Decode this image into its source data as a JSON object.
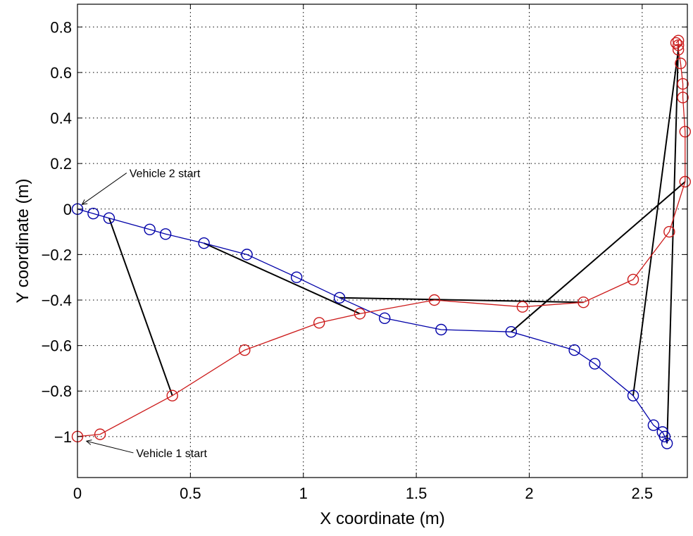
{
  "chart_data": {
    "type": "line",
    "xlabel": "X coordinate (m)",
    "ylabel": "Y coordinate (m)",
    "xlim": [
      0,
      2.7
    ],
    "ylim": [
      -1.18,
      0.9
    ],
    "grid": true,
    "grid_style": "dotted",
    "xticks": [
      0,
      0.5,
      1,
      1.5,
      2,
      2.5
    ],
    "xtick_labels": [
      "0",
      "0.5",
      "1",
      "1.5",
      "2",
      "2.5"
    ],
    "yticks": [
      -1,
      -0.8,
      -0.6,
      -0.4,
      -0.2,
      0,
      0.2,
      0.4,
      0.6,
      0.8
    ],
    "ytick_labels": [
      "−1",
      "−0.8",
      "−0.6",
      "−0.4",
      "−0.2",
      "0",
      "0.2",
      "0.4",
      "0.6",
      "0.8"
    ],
    "series": [
      {
        "color": "#0000a8",
        "marker": "circle",
        "x": [
          0,
          0.07,
          0.14,
          0.32,
          0.39,
          0.56,
          0.75,
          0.97,
          1.16,
          1.36,
          1.61,
          1.92,
          2.2,
          2.29,
          2.46,
          2.55,
          2.59,
          2.6,
          2.61
        ],
        "y": [
          0,
          -0.02,
          -0.04,
          -0.09,
          -0.11,
          -0.15,
          -0.2,
          -0.3,
          -0.39,
          -0.48,
          -0.53,
          -0.54,
          -0.62,
          -0.68,
          -0.82,
          -0.95,
          -0.98,
          -1.0,
          -1.03
        ]
      },
      {
        "color": "#cc1a1a",
        "marker": "circle",
        "x": [
          0,
          0.1,
          0.42,
          0.74,
          1.07,
          1.25,
          1.58,
          1.97,
          2.24,
          2.46,
          2.62,
          2.69,
          2.69,
          2.68,
          2.68,
          2.67,
          2.66,
          2.66,
          2.66,
          2.65
        ],
        "y": [
          -1.0,
          -0.99,
          -0.82,
          -0.62,
          -0.5,
          -0.46,
          -0.4,
          -0.43,
          -0.41,
          -0.31,
          -0.1,
          0.12,
          0.34,
          0.49,
          0.55,
          0.64,
          0.7,
          0.72,
          0.74,
          0.73
        ]
      }
    ],
    "connectors": {
      "color": "#000000",
      "segments": [
        [
          [
            0.14,
            -0.04
          ],
          [
            0.42,
            -0.82
          ]
        ],
        [
          [
            0.56,
            -0.15
          ],
          [
            1.25,
            -0.46
          ]
        ],
        [
          [
            1.16,
            -0.39
          ],
          [
            2.24,
            -0.41
          ]
        ],
        [
          [
            1.92,
            -0.54
          ],
          [
            2.69,
            0.12
          ]
        ],
        [
          [
            2.46,
            -0.82
          ],
          [
            2.66,
            0.7
          ]
        ],
        [
          [
            2.61,
            -1.03
          ],
          [
            2.66,
            0.72
          ]
        ]
      ]
    },
    "annotations": [
      {
        "text": "Vehicle 2 start",
        "point": [
          0.02,
          0.02
        ],
        "text_at": [
          0.23,
          0.14
        ]
      },
      {
        "text": "Vehicle 1 start",
        "point": [
          0.04,
          -1.02
        ],
        "text_at": [
          0.26,
          -1.09
        ]
      }
    ]
  }
}
